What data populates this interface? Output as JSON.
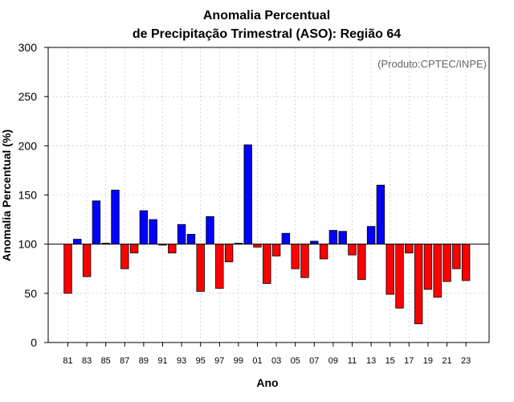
{
  "chart_data": {
    "type": "bar",
    "title_line1": "Anomalia Percentual",
    "title_line2": "de Precipitação Trimestral (ASO): Região 64",
    "xlabel": "Ano",
    "ylabel": "Anomalia Percentual (%)",
    "credit": "(Produto:CPTEC/INPE)",
    "baseline": 100,
    "ylim": [
      0,
      300
    ],
    "yticks": [
      "0",
      "50",
      "100",
      "150",
      "200",
      "250",
      "300"
    ],
    "ytick_values": [
      0,
      50,
      100,
      150,
      200,
      250,
      300
    ],
    "categories": [
      "81",
      "82",
      "83",
      "84",
      "85",
      "86",
      "87",
      "88",
      "89",
      "90",
      "91",
      "92",
      "93",
      "94",
      "95",
      "96",
      "97",
      "98",
      "99",
      "00",
      "01",
      "02",
      "03",
      "04",
      "05",
      "06",
      "07",
      "08",
      "09",
      "10",
      "11",
      "12",
      "13",
      "14",
      "15",
      "16",
      "17",
      "18",
      "19",
      "20",
      "21",
      "22",
      "23"
    ],
    "xtick_labels": [
      "81",
      "83",
      "85",
      "87",
      "89",
      "91",
      "93",
      "95",
      "97",
      "99",
      "01",
      "03",
      "05",
      "07",
      "09",
      "11",
      "13",
      "15",
      "17",
      "19",
      "21",
      "23"
    ],
    "values": [
      50,
      105,
      67,
      144,
      101,
      155,
      75,
      91,
      134,
      125,
      99,
      91,
      120,
      110,
      52,
      128,
      55,
      82,
      101,
      201,
      97,
      60,
      88,
      111,
      75,
      66,
      103,
      85,
      114,
      113,
      89,
      64,
      118,
      160,
      49,
      35,
      91,
      19,
      54,
      46,
      62,
      75,
      63
    ],
    "colors": {
      "above": "#0000ff",
      "below": "#ff0000",
      "outline": "#000000",
      "grid": "#cccccc"
    }
  }
}
